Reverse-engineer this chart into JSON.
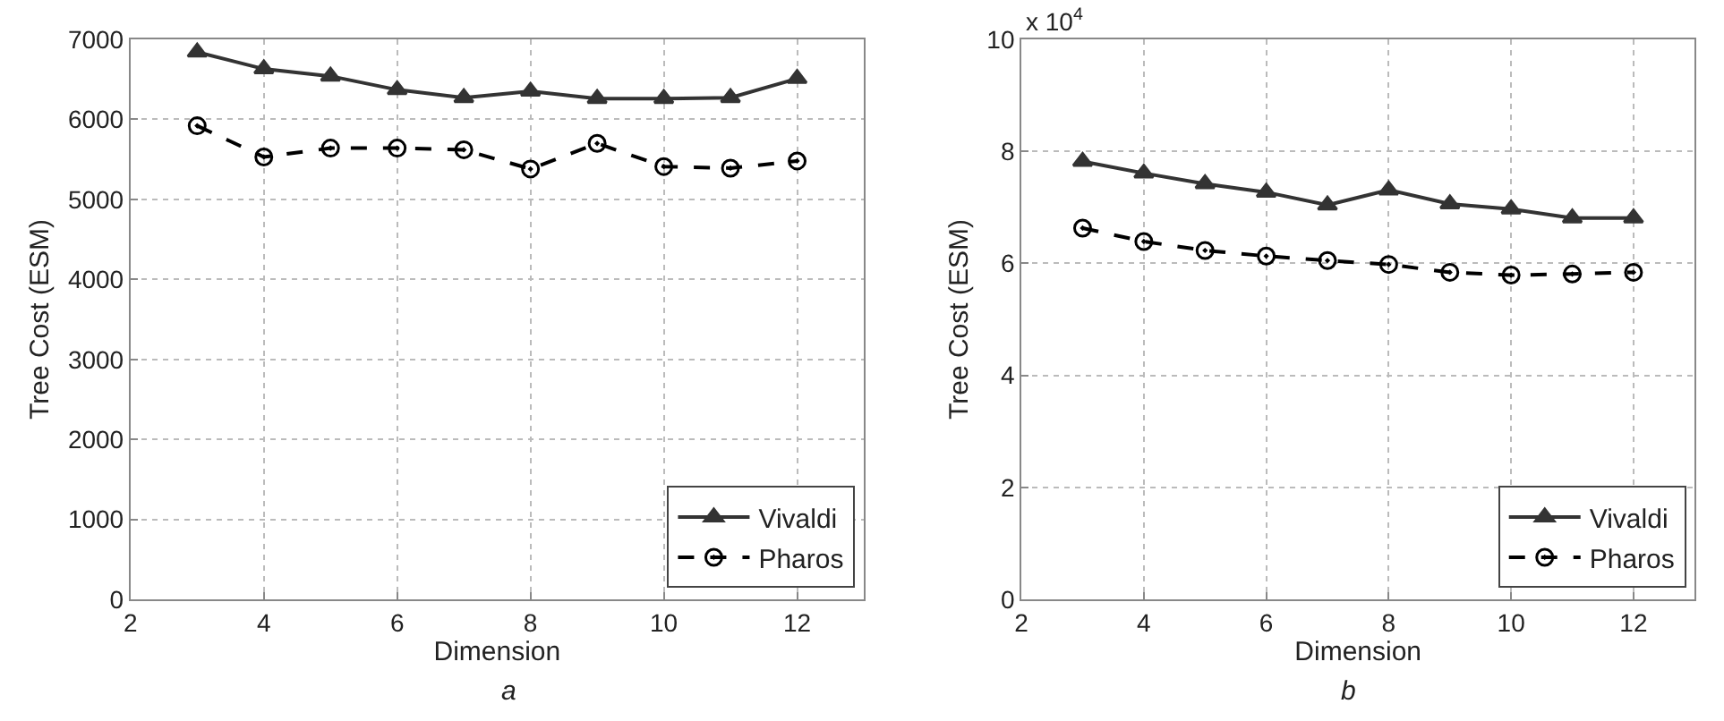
{
  "chart_data": [
    {
      "type": "line",
      "xlabel": "Dimension",
      "ylabel": "Tree Cost (ESM)",
      "annotations": [
        "a"
      ],
      "x": [
        3,
        4,
        5,
        6,
        7,
        8,
        9,
        10,
        11,
        12
      ],
      "series": [
        {
          "name": "Vivaldi",
          "color": "#333333",
          "marker": "triangle",
          "line_style": "solid",
          "values": [
            6840,
            6630,
            6540,
            6370,
            6270,
            6350,
            6260,
            6260,
            6270,
            6510
          ]
        },
        {
          "name": "Pharos",
          "color": "#000000",
          "marker": "circle",
          "line_style": "dashed",
          "values": [
            5920,
            5530,
            5640,
            5640,
            5620,
            5380,
            5700,
            5410,
            5390,
            5480
          ]
        }
      ],
      "xlim": [
        2,
        13
      ],
      "xticks": [
        2,
        4,
        6,
        8,
        10,
        12
      ],
      "ylim": [
        0,
        7000
      ],
      "yticks": [
        0,
        1000,
        2000,
        3000,
        4000,
        5000,
        6000,
        7000
      ],
      "grid": true,
      "legend": "bottom right"
    },
    {
      "type": "line",
      "xlabel": "Dimension",
      "ylabel": "Tree Cost (ESM)",
      "annotations": [
        "x 10$^{4}$",
        "b"
      ],
      "x": [
        3,
        4,
        5,
        6,
        7,
        8,
        9,
        10,
        11,
        12
      ],
      "series": [
        {
          "name": "Vivaldi",
          "color": "#333333",
          "marker": "triangle",
          "line_style": "solid",
          "values": [
            7.82,
            7.61,
            7.42,
            7.27,
            7.04,
            7.31,
            7.06,
            6.97,
            6.81,
            6.81
          ]
        },
        {
          "name": "Pharos",
          "color": "#000000",
          "marker": "circle",
          "line_style": "dashed",
          "values": [
            6.63,
            6.39,
            6.23,
            6.13,
            6.05,
            5.98,
            5.84,
            5.79,
            5.81,
            5.84
          ]
        }
      ],
      "xlim": [
        2,
        13
      ],
      "xticks": [
        2,
        4,
        6,
        8,
        10,
        12
      ],
      "ylim": [
        0,
        10
      ],
      "yticks": [
        0,
        2,
        4,
        6,
        8,
        10
      ],
      "grid": true,
      "legend": "bottom right"
    }
  ]
}
